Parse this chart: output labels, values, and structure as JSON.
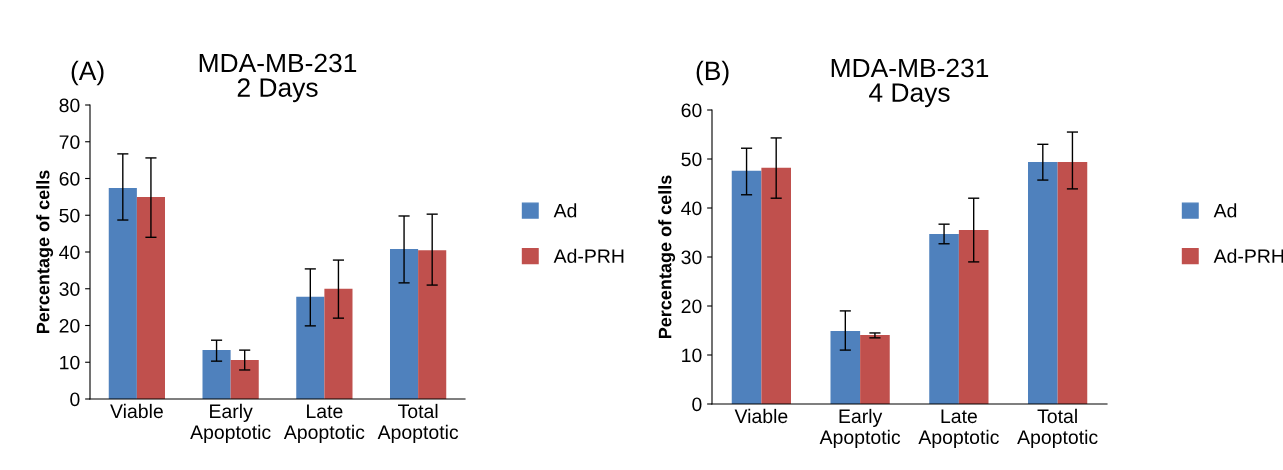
{
  "chart_data": [
    {
      "type": "bar",
      "title": "MDA-MB-231\n2 Days",
      "ylabel": "Percentage of cells",
      "annotations": [
        "(A)"
      ],
      "categories": [
        "Viable",
        "Early\nApoptotic",
        "Late\nApoptotic",
        "Total\nApoptotic"
      ],
      "ylim": [
        0,
        80
      ],
      "yticks": [
        0,
        10,
        20,
        30,
        40,
        50,
        60,
        70,
        80
      ],
      "grid": false,
      "legend": "right",
      "series": [
        {
          "name": "Ad",
          "color": "#4f81bd",
          "values": [
            57.4,
            13.3,
            27.8,
            40.8
          ],
          "errors": [
            [
              48.7,
              66.7
            ],
            [
              10.3,
              16
            ],
            [
              19.9,
              35.4
            ],
            [
              31.6,
              49.8
            ]
          ]
        },
        {
          "name": "Ad-PRH",
          "color": "#c0504d",
          "values": [
            55,
            10.6,
            30,
            40.5
          ],
          "errors": [
            [
              44,
              65.6
            ],
            [
              7.9,
              13.3
            ],
            [
              22,
              37.8
            ],
            [
              31,
              50.3
            ]
          ]
        }
      ]
    },
    {
      "type": "bar",
      "title": "MDA-MB-231\n4 Days",
      "ylabel": "Percentage of cells",
      "annotations": [
        "(B)"
      ],
      "categories": [
        "Viable",
        "Early\nApoptotic",
        "Late\nApoptotic",
        "Total\nApoptotic"
      ],
      "ylim": [
        0,
        60
      ],
      "yticks": [
        0,
        10,
        20,
        30,
        40,
        50,
        60
      ],
      "grid": false,
      "legend": "right",
      "series": [
        {
          "name": "Ad",
          "color": "#4f81bd",
          "values": [
            47.6,
            14.9,
            34.7,
            49.4
          ],
          "errors": [
            [
              42.7,
              52.2
            ],
            [
              11,
              19
            ],
            [
              32.7,
              36.7
            ],
            [
              45.7,
              53
            ]
          ]
        },
        {
          "name": "Ad-PRH",
          "color": "#c0504d",
          "values": [
            48.2,
            14.1,
            35.5,
            49.4
          ],
          "errors": [
            [
              42,
              54.3
            ],
            [
              13.5,
              14.5
            ],
            [
              29,
              42
            ],
            [
              43.9,
              55.5
            ]
          ]
        }
      ]
    }
  ]
}
